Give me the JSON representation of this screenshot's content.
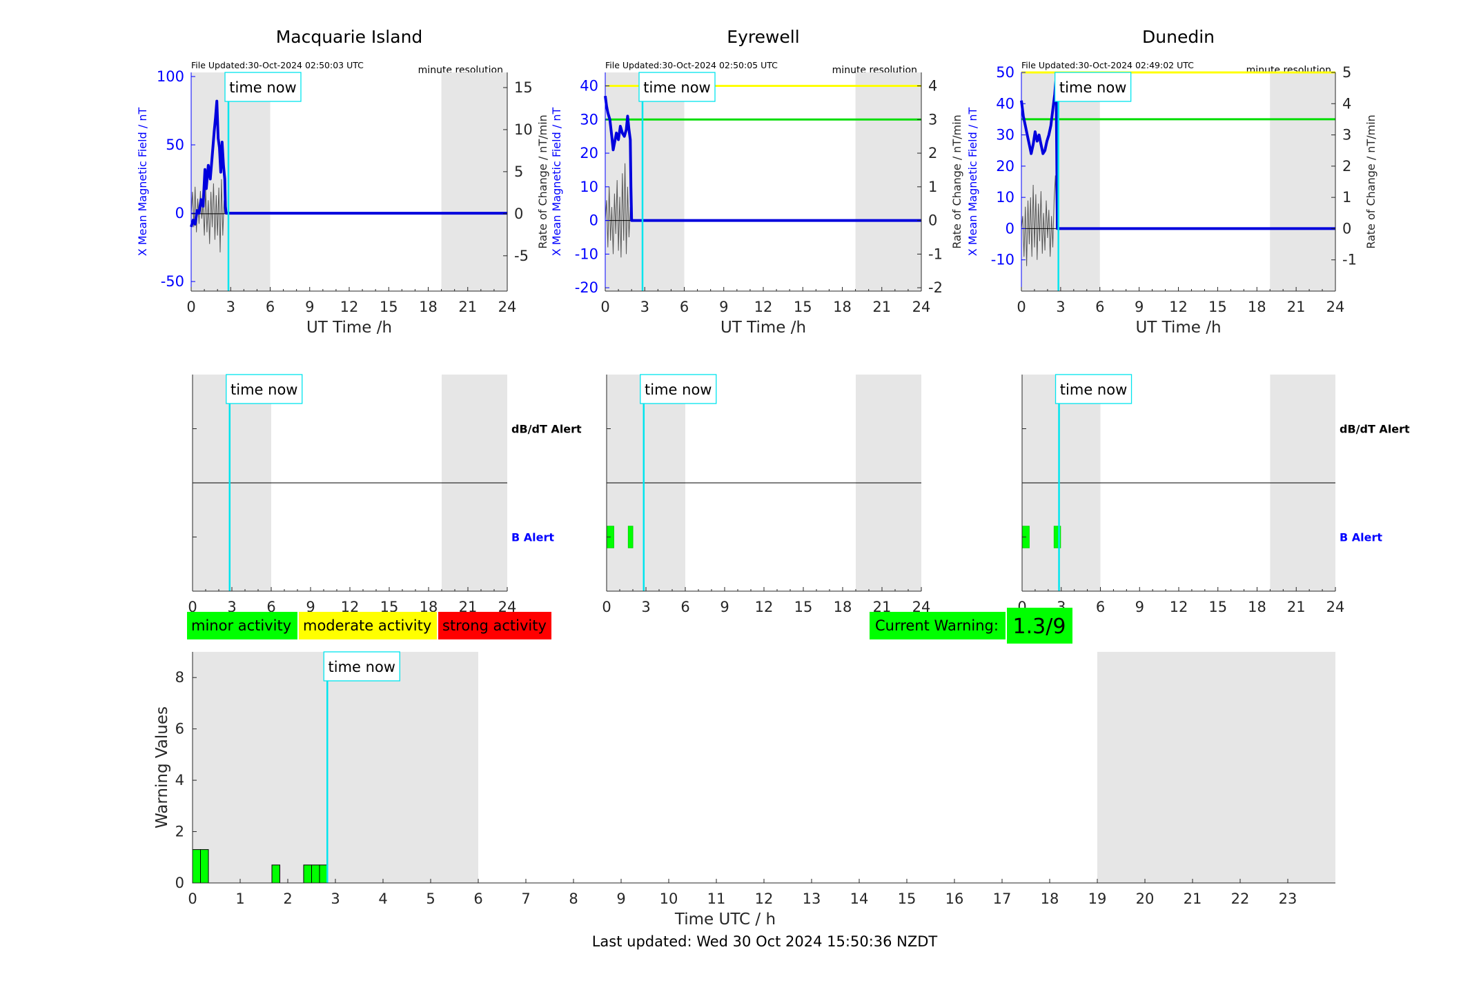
{
  "time_now_label": "time now",
  "time_now_hour": 2.83,
  "night_shading": {
    "start": 0,
    "end": 6,
    "start2": 19,
    "end2": 24
  },
  "stations": [
    {
      "id": "macquarie",
      "name": "Macquarie Island",
      "file_updated": "File Updated:30-Oct-2024 02:50:03 UTC",
      "resolution": "minute resolution",
      "y_left_label": "X Mean Magnetic Field / nT",
      "y_right_label": "Rate of Change / nT/min",
      "x_label": "UT Time /h",
      "ylim_left": [
        -57,
        103
      ],
      "yticks_left": [
        -50,
        0,
        50,
        100
      ],
      "ylim_right": [
        -9.2,
        16.8
      ],
      "yticks_right": [
        -5,
        0,
        5,
        10,
        15
      ],
      "yticklabels_right": [
        "-5",
        "0",
        "5",
        "10",
        "15"
      ],
      "thresholds": [],
      "x_mean_series": [
        [
          0,
          -10
        ],
        [
          0.15,
          -5
        ],
        [
          0.3,
          -8
        ],
        [
          0.45,
          2
        ],
        [
          0.6,
          0
        ],
        [
          0.75,
          10
        ],
        [
          0.9,
          5
        ],
        [
          1.05,
          32
        ],
        [
          1.15,
          18
        ],
        [
          1.3,
          35
        ],
        [
          1.45,
          25
        ],
        [
          1.6,
          42
        ],
        [
          1.75,
          60
        ],
        [
          1.85,
          70
        ],
        [
          1.95,
          82
        ],
        [
          2.05,
          55
        ],
        [
          2.15,
          48
        ],
        [
          2.25,
          30
        ],
        [
          2.35,
          52
        ],
        [
          2.45,
          35
        ],
        [
          2.55,
          25
        ],
        [
          2.6,
          5
        ],
        [
          2.65,
          0
        ],
        [
          24,
          0
        ]
      ],
      "rate_of_change_series": [
        [
          0,
          0
        ],
        [
          0.1,
          2.6
        ],
        [
          0.2,
          -1.6
        ],
        [
          0.3,
          3.2
        ],
        [
          0.4,
          -2.2
        ],
        [
          0.5,
          1.8
        ],
        [
          0.6,
          -1.2
        ],
        [
          0.7,
          2.7
        ],
        [
          0.8,
          -0.6
        ],
        [
          0.9,
          1.2
        ],
        [
          1.0,
          -2.6
        ],
        [
          1.1,
          3.1
        ],
        [
          1.2,
          -2.2
        ],
        [
          1.3,
          1.6
        ],
        [
          1.4,
          -3.6
        ],
        [
          1.5,
          2.6
        ],
        [
          1.6,
          -1.6
        ],
        [
          1.7,
          3.6
        ],
        [
          1.8,
          -3.1
        ],
        [
          1.9,
          2.2
        ],
        [
          2.0,
          -2.6
        ],
        [
          2.1,
          3.1
        ],
        [
          2.2,
          -4.6
        ],
        [
          2.3,
          4.1
        ],
        [
          2.4,
          -2.6
        ],
        [
          2.5,
          1.6
        ],
        [
          2.55,
          0
        ]
      ],
      "alerts": {
        "dbdt_label": "dB/dT Alert",
        "b_label": "B Alert",
        "b_blocks": []
      }
    },
    {
      "id": "eyrewell",
      "name": "Eyrewell",
      "file_updated": "File Updated:30-Oct-2024 02:50:05 UTC",
      "resolution": "minute resolution",
      "y_left_label": "X Mean Magnetic Field / nT",
      "y_right_label": "Rate of Change / nT/min",
      "x_label": "UT Time /h",
      "ylim_left": [
        -21,
        44
      ],
      "yticks_left": [
        -20,
        -10,
        0,
        10,
        20,
        30,
        40
      ],
      "ylim_right": [
        -2.1,
        4.4
      ],
      "yticks_right": [
        -2,
        -1,
        0,
        1,
        2,
        3,
        4
      ],
      "yticklabels_right": [
        "-2",
        "-1",
        "0",
        "1",
        "2",
        "3",
        "4"
      ],
      "thresholds": [
        {
          "value": 40,
          "color": "#ffff00"
        },
        {
          "value": 30,
          "color": "#00dd00"
        }
      ],
      "x_mean_series": [
        [
          0,
          37
        ],
        [
          0.1,
          34
        ],
        [
          0.2,
          32
        ],
        [
          0.35,
          30
        ],
        [
          0.5,
          25
        ],
        [
          0.6,
          21
        ],
        [
          0.7,
          23
        ],
        [
          0.85,
          26
        ],
        [
          1.0,
          24
        ],
        [
          1.15,
          28
        ],
        [
          1.3,
          26
        ],
        [
          1.45,
          25
        ],
        [
          1.6,
          27
        ],
        [
          1.7,
          31
        ],
        [
          1.8,
          27
        ],
        [
          1.9,
          24
        ],
        [
          1.95,
          10
        ],
        [
          2.0,
          0
        ],
        [
          24,
          0
        ]
      ],
      "rate_of_change_series": [
        [
          0,
          0
        ],
        [
          0.1,
          0.6
        ],
        [
          0.2,
          -0.8
        ],
        [
          0.3,
          1.0
        ],
        [
          0.4,
          -0.6
        ],
        [
          0.5,
          0.4
        ],
        [
          0.6,
          -1.0
        ],
        [
          0.7,
          0.8
        ],
        [
          0.8,
          -0.4
        ],
        [
          0.9,
          1.2
        ],
        [
          1.0,
          -0.9
        ],
        [
          1.1,
          0.7
        ],
        [
          1.2,
          -1.1
        ],
        [
          1.3,
          1.4
        ],
        [
          1.4,
          -0.6
        ],
        [
          1.5,
          1.7
        ],
        [
          1.6,
          -1.0
        ],
        [
          1.7,
          1.0
        ],
        [
          1.8,
          -0.5
        ],
        [
          1.9,
          0.4
        ],
        [
          2.0,
          0
        ]
      ],
      "alerts": {
        "dbdt_label": "",
        "b_label": "",
        "b_blocks": [
          [
            0.0,
            0.55
          ],
          [
            1.65,
            2.0
          ]
        ]
      }
    },
    {
      "id": "dunedin",
      "name": "Dunedin",
      "file_updated": "File Updated:30-Oct-2024 02:49:02 UTC",
      "resolution": "minute resolution",
      "y_left_label": "X Mean Magnetic Field / nT",
      "y_right_label": "Rate of Change / nT/min",
      "x_label": "UT Time /h",
      "ylim_left": [
        -20,
        50
      ],
      "yticks_left": [
        -10,
        0,
        10,
        20,
        30,
        40,
        50
      ],
      "ylim_right": [
        -2,
        5
      ],
      "yticks_right": [
        -1,
        0,
        1,
        2,
        3,
        4,
        5
      ],
      "yticklabels_right": [
        "-1",
        "0",
        "1",
        "2",
        "3",
        "4",
        "5"
      ],
      "thresholds": [
        {
          "value": 50,
          "color": "#ffff00"
        },
        {
          "value": 35,
          "color": "#00dd00"
        }
      ],
      "x_mean_series": [
        [
          0,
          41
        ],
        [
          0.15,
          36
        ],
        [
          0.3,
          33
        ],
        [
          0.45,
          30
        ],
        [
          0.6,
          27
        ],
        [
          0.75,
          24
        ],
        [
          0.9,
          27
        ],
        [
          1.05,
          31
        ],
        [
          1.2,
          28
        ],
        [
          1.35,
          30
        ],
        [
          1.5,
          27
        ],
        [
          1.65,
          24
        ],
        [
          1.8,
          25
        ],
        [
          1.95,
          28
        ],
        [
          2.1,
          30
        ],
        [
          2.25,
          33
        ],
        [
          2.4,
          38
        ],
        [
          2.55,
          43
        ],
        [
          2.65,
          48
        ],
        [
          2.7,
          25
        ],
        [
          2.75,
          0
        ],
        [
          24,
          0
        ]
      ],
      "rate_of_change_series": [
        [
          0,
          0
        ],
        [
          0.1,
          0.4
        ],
        [
          0.2,
          -0.9
        ],
        [
          0.3,
          0.7
        ],
        [
          0.4,
          -1.2
        ],
        [
          0.5,
          0.9
        ],
        [
          0.6,
          -0.5
        ],
        [
          0.7,
          1.0
        ],
        [
          0.8,
          -0.9
        ],
        [
          0.9,
          1.4
        ],
        [
          1.0,
          -0.6
        ],
        [
          1.1,
          1.1
        ],
        [
          1.2,
          -1.0
        ],
        [
          1.3,
          0.8
        ],
        [
          1.4,
          -0.4
        ],
        [
          1.5,
          1.2
        ],
        [
          1.6,
          -0.8
        ],
        [
          1.7,
          0.5
        ],
        [
          1.8,
          -0.7
        ],
        [
          1.9,
          0.9
        ],
        [
          2.0,
          -0.3
        ],
        [
          2.1,
          0.6
        ],
        [
          2.2,
          -0.9
        ],
        [
          2.3,
          0.4
        ],
        [
          2.4,
          -0.6
        ],
        [
          2.5,
          0.9
        ],
        [
          2.6,
          1.7
        ],
        [
          2.7,
          0
        ]
      ],
      "alerts": {
        "dbdt_label": "dB/dT Alert",
        "b_label": "B Alert",
        "b_blocks": [
          [
            0.0,
            0.55
          ],
          [
            2.45,
            2.95
          ]
        ]
      }
    }
  ],
  "alert_x_label": "",
  "legend": {
    "minor": {
      "label": "minor activity",
      "color": "#00ff00"
    },
    "moderate": {
      "label": "moderate activity",
      "color": "#ffff00"
    },
    "strong": {
      "label": "strong activity",
      "color": "#ff0000"
    }
  },
  "current_warning": {
    "label": "Current Warning:",
    "value": "1.3/9",
    "color": "#00ff00"
  },
  "chart_data": {
    "type": "bar",
    "title": "",
    "xlabel": "Time UTC / h",
    "ylabel": "Warning Values",
    "xlim": [
      0,
      24
    ],
    "ylim": [
      0,
      9
    ],
    "yticks": [
      0,
      2,
      4,
      6,
      8
    ],
    "xticks": [
      0,
      1,
      2,
      3,
      4,
      5,
      6,
      7,
      8,
      9,
      10,
      11,
      12,
      13,
      14,
      15,
      16,
      17,
      18,
      19,
      20,
      21,
      22,
      23
    ],
    "bar_width_h": 0.1667,
    "bar_color": "#00ff00",
    "x": [
      0.0,
      0.1667,
      1.6667,
      2.3333,
      2.5,
      2.6667
    ],
    "values": [
      1.3,
      1.3,
      0.7,
      0.7,
      0.7,
      0.7
    ]
  },
  "last_updated": "Last updated: Wed 30 Oct 2024 15:50:36 NZDT"
}
